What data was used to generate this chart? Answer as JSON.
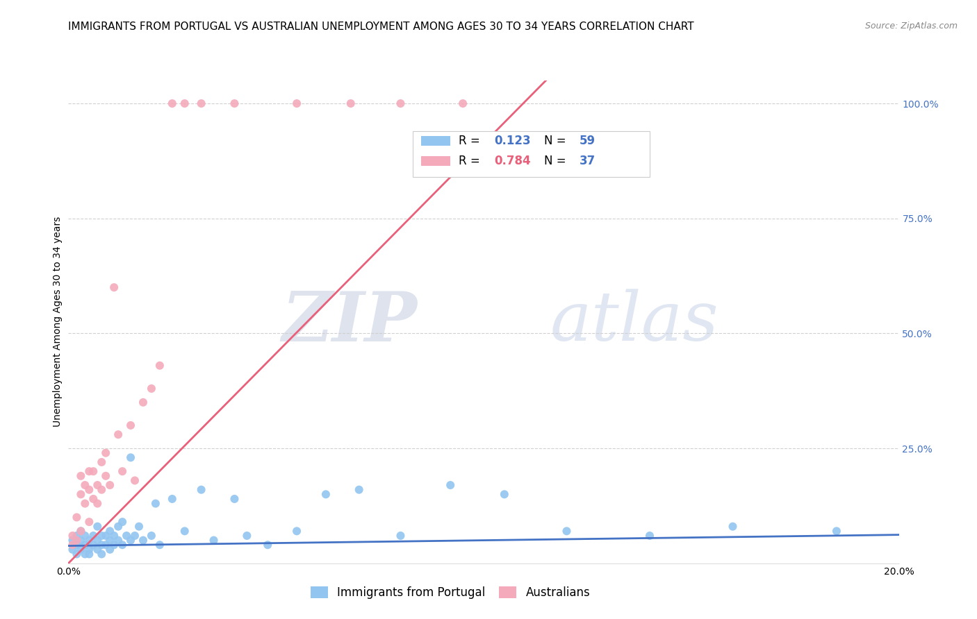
{
  "title": "IMMIGRANTS FROM PORTUGAL VS AUSTRALIAN UNEMPLOYMENT AMONG AGES 30 TO 34 YEARS CORRELATION CHART",
  "source": "Source: ZipAtlas.com",
  "ylabel": "Unemployment Among Ages 30 to 34 years",
  "xlim": [
    0.0,
    0.2
  ],
  "ylim": [
    0.0,
    1.05
  ],
  "xticks": [
    0.0,
    0.05,
    0.1,
    0.15,
    0.2
  ],
  "xticklabels": [
    "0.0%",
    "",
    "",
    "",
    "20.0%"
  ],
  "ytick_positions": [
    0.0,
    0.25,
    0.5,
    0.75,
    1.0
  ],
  "ytick_labels": [
    "",
    "25.0%",
    "50.0%",
    "75.0%",
    "100.0%"
  ],
  "blue_color": "#92C5F0",
  "pink_color": "#F4AABB",
  "blue_line_color": "#4472C4",
  "pink_line_color": "#E8607A",
  "watermark_zip": "ZIP",
  "watermark_atlas": "atlas",
  "blue_scatter_x": [
    0.001,
    0.001,
    0.002,
    0.002,
    0.002,
    0.003,
    0.003,
    0.003,
    0.004,
    0.004,
    0.004,
    0.005,
    0.005,
    0.005,
    0.006,
    0.006,
    0.007,
    0.007,
    0.007,
    0.008,
    0.008,
    0.008,
    0.009,
    0.009,
    0.01,
    0.01,
    0.01,
    0.011,
    0.011,
    0.012,
    0.012,
    0.013,
    0.013,
    0.014,
    0.015,
    0.015,
    0.016,
    0.017,
    0.018,
    0.02,
    0.021,
    0.022,
    0.025,
    0.028,
    0.032,
    0.035,
    0.04,
    0.043,
    0.048,
    0.055,
    0.062,
    0.07,
    0.08,
    0.092,
    0.105,
    0.12,
    0.14,
    0.16,
    0.185
  ],
  "blue_scatter_y": [
    0.03,
    0.05,
    0.02,
    0.04,
    0.06,
    0.03,
    0.05,
    0.07,
    0.02,
    0.04,
    0.06,
    0.03,
    0.05,
    0.02,
    0.04,
    0.06,
    0.03,
    0.05,
    0.08,
    0.04,
    0.06,
    0.02,
    0.04,
    0.06,
    0.03,
    0.05,
    0.07,
    0.04,
    0.06,
    0.05,
    0.08,
    0.04,
    0.09,
    0.06,
    0.23,
    0.05,
    0.06,
    0.08,
    0.05,
    0.06,
    0.13,
    0.04,
    0.14,
    0.07,
    0.16,
    0.05,
    0.14,
    0.06,
    0.04,
    0.07,
    0.15,
    0.16,
    0.06,
    0.17,
    0.15,
    0.07,
    0.06,
    0.08,
    0.07
  ],
  "pink_scatter_x": [
    0.001,
    0.001,
    0.002,
    0.002,
    0.003,
    0.003,
    0.003,
    0.004,
    0.004,
    0.005,
    0.005,
    0.005,
    0.006,
    0.006,
    0.007,
    0.007,
    0.008,
    0.008,
    0.009,
    0.009,
    0.01,
    0.011,
    0.012,
    0.013,
    0.015,
    0.016,
    0.018,
    0.02,
    0.022,
    0.025,
    0.028,
    0.032,
    0.04,
    0.055,
    0.068,
    0.08,
    0.095
  ],
  "pink_scatter_y": [
    0.04,
    0.06,
    0.05,
    0.1,
    0.07,
    0.15,
    0.19,
    0.13,
    0.17,
    0.09,
    0.16,
    0.2,
    0.14,
    0.2,
    0.13,
    0.17,
    0.16,
    0.22,
    0.19,
    0.24,
    0.17,
    0.6,
    0.28,
    0.2,
    0.3,
    0.18,
    0.35,
    0.38,
    0.43,
    1.0,
    1.0,
    1.0,
    1.0,
    1.0,
    1.0,
    1.0,
    1.0
  ],
  "blue_trend_x": [
    0.0,
    0.2
  ],
  "blue_trend_y": [
    0.038,
    0.062
  ],
  "pink_trend_x": [
    0.0,
    0.115
  ],
  "pink_trend_y": [
    0.0,
    1.05
  ],
  "background_color": "#FFFFFF",
  "grid_color": "#D0D0D0",
  "title_fontsize": 11,
  "axis_label_fontsize": 10,
  "tick_fontsize": 10,
  "legend_fontsize": 12
}
